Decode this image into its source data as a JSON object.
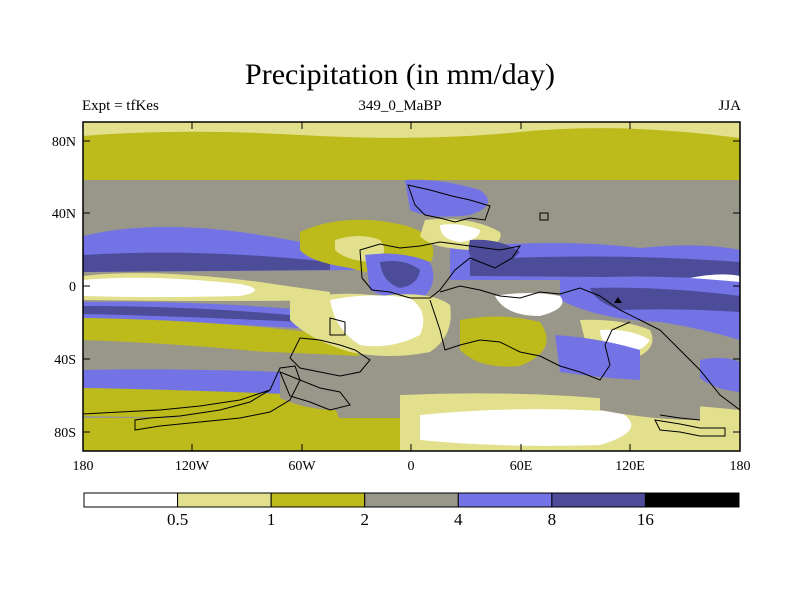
{
  "title": "Precipitation (in mm/day)",
  "subtitle_left": "Expt = tfKes",
  "subtitle_center": "349_0_MaBP",
  "subtitle_right": "JJA",
  "y_ticks": [
    "80N",
    "40N",
    "0",
    "40S",
    "80S"
  ],
  "x_ticks": [
    "180",
    "120W",
    "60W",
    "0",
    "60E",
    "120E",
    "180"
  ],
  "colorbar": {
    "colors": [
      "#ffffff",
      "#e2e08c",
      "#bdba1c",
      "#99978a",
      "#7373e6",
      "#4c4c99",
      "#000000"
    ],
    "labels": [
      "0.5",
      "1",
      "2",
      "4",
      "8",
      "16"
    ]
  }
}
